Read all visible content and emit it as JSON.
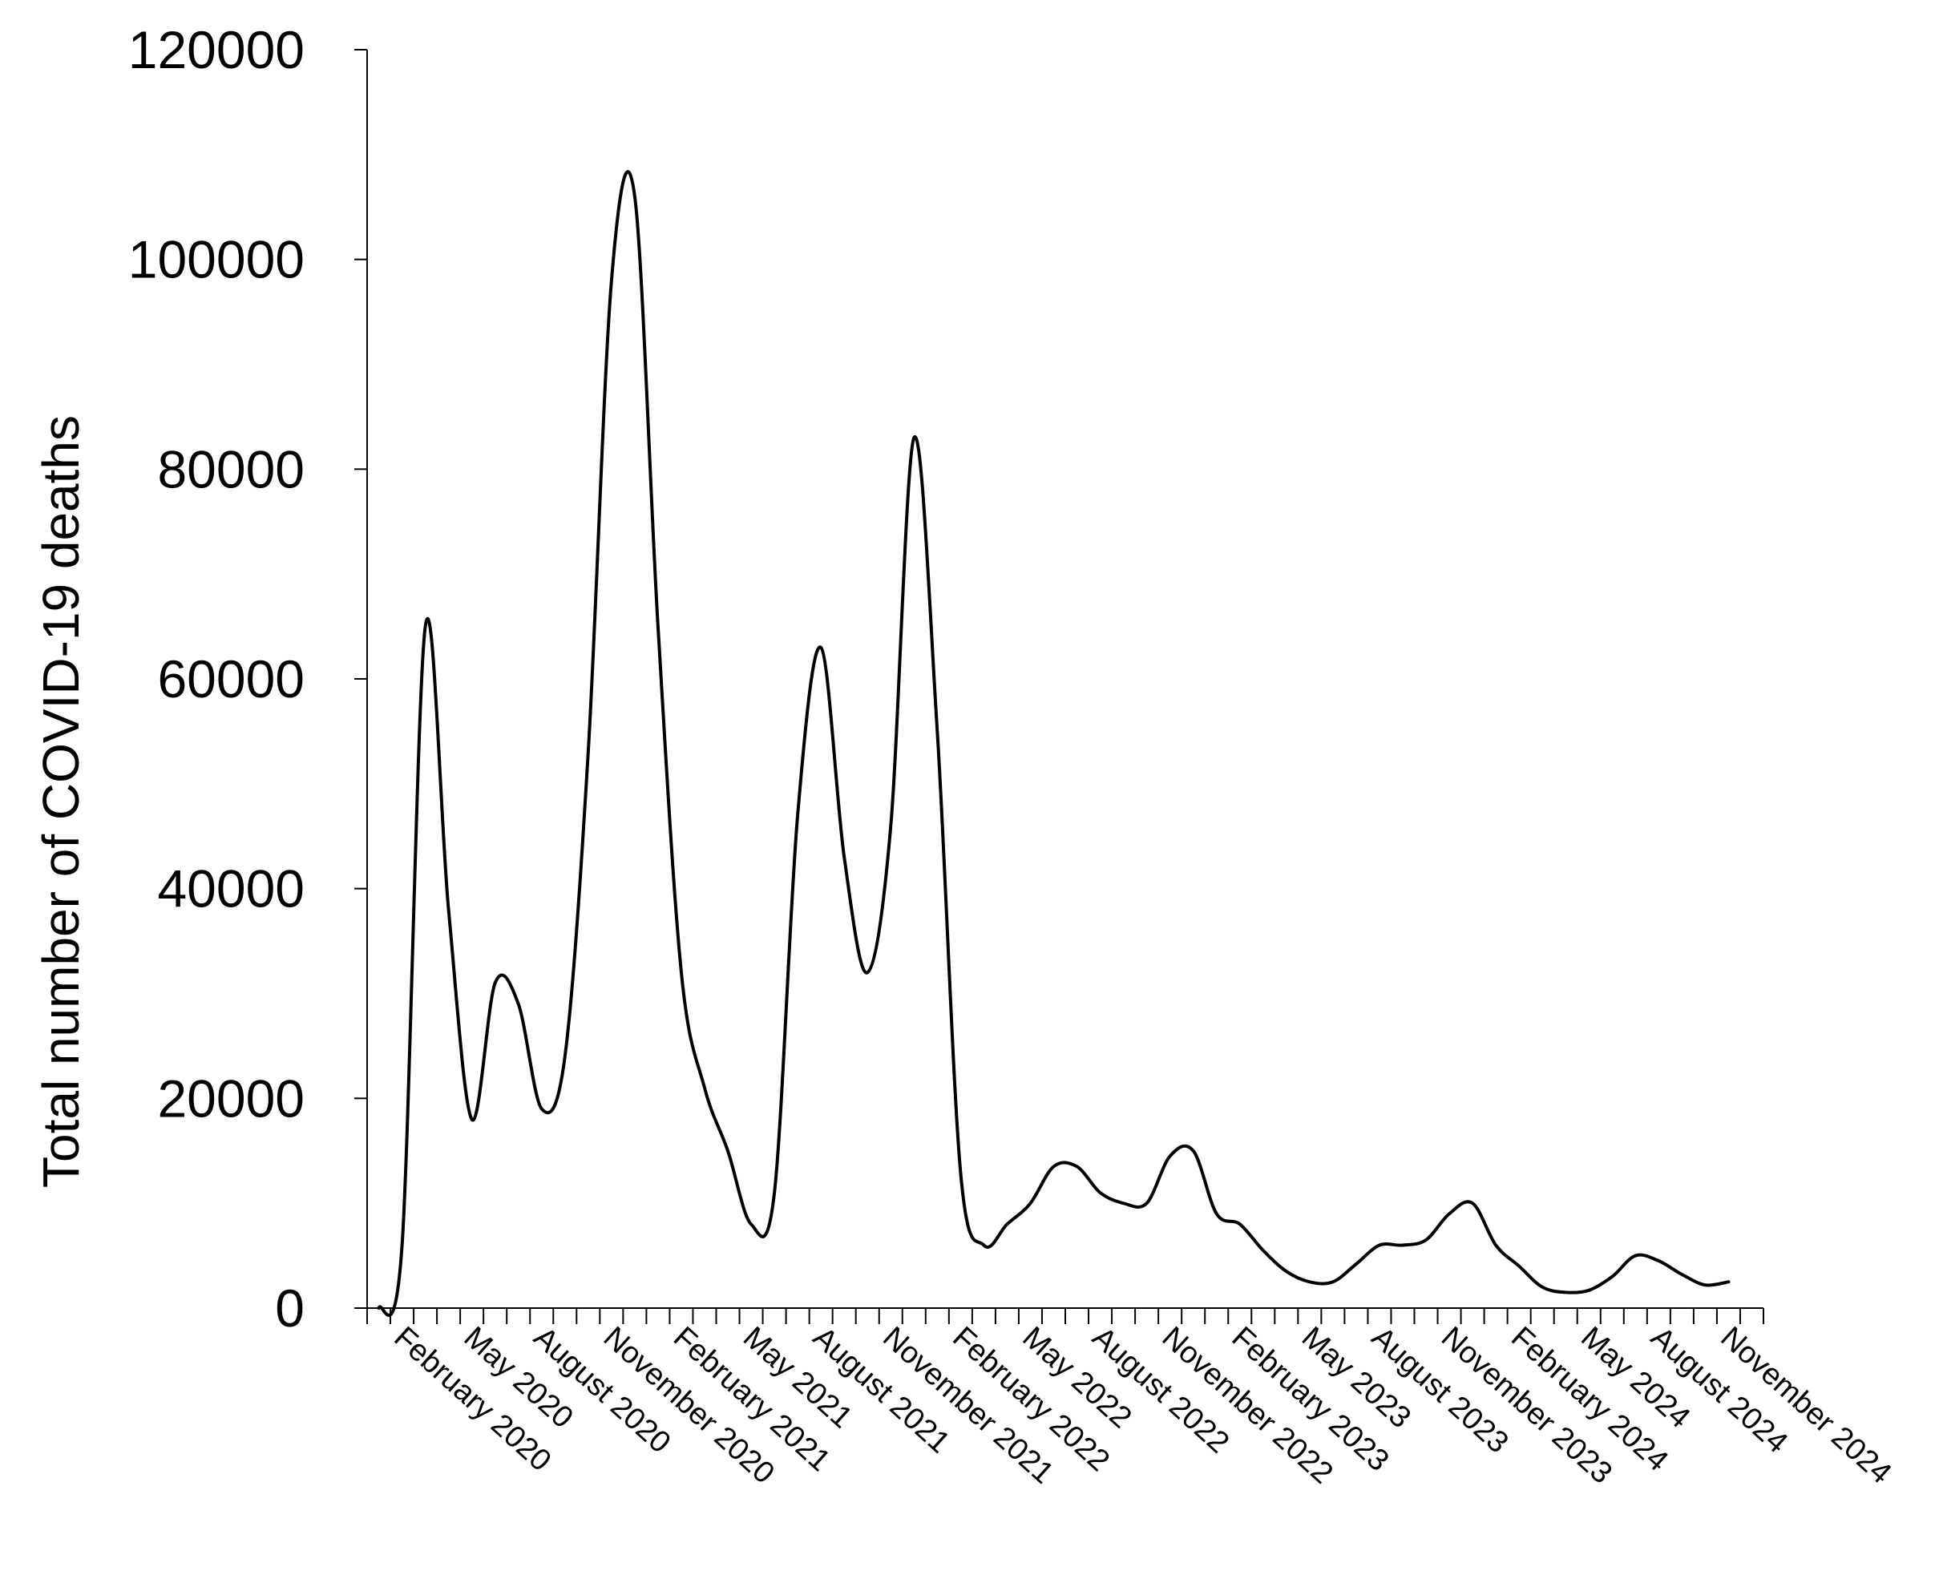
{
  "chart_data": {
    "type": "line",
    "title": "",
    "xlabel": "",
    "ylabel": "Total number of COVID-19 deaths",
    "ylim": [
      0,
      120000
    ],
    "yticks": [
      "0",
      "20000",
      "40000",
      "60000",
      "80000",
      "100000",
      "120000"
    ],
    "grid": false,
    "legend": "none",
    "line_color": "#000000",
    "x": [
      "January 2020",
      "February 2020",
      "March 2020",
      "April 2020",
      "May 2020",
      "June 2020",
      "July 2020",
      "August 2020",
      "September 2020",
      "October 2020",
      "November 2020",
      "December 2020",
      "January 2021",
      "February 2021",
      "March 2021",
      "April 2021",
      "May 2021",
      "June 2021",
      "July 2021",
      "August 2021",
      "September 2021",
      "October 2021",
      "November 2021",
      "December 2021",
      "January 2022",
      "February 2022",
      "March 2022",
      "April 2022",
      "May 2022",
      "June 2022",
      "July 2022",
      "August 2022",
      "September 2022",
      "October 2022",
      "November 2022",
      "December 2022",
      "January 2023",
      "February 2023",
      "March 2023",
      "April 2023",
      "May 2023",
      "June 2023",
      "July 2023",
      "August 2023",
      "September 2023",
      "October 2023",
      "November 2023",
      "December 2023",
      "January 2024",
      "February 2024",
      "March 2024",
      "April 2024",
      "May 2024",
      "June 2024",
      "July 2024",
      "August 2024",
      "September 2024",
      "October 2024",
      "November 2024",
      "December 2024"
    ],
    "series": [
      {
        "values": [
          0,
          6000,
          65000,
          38000,
          18000,
          31000,
          29000,
          19000,
          24000,
          53000,
          98000,
          106000,
          65000,
          32000,
          21000,
          15000,
          8000,
          11000,
          47000,
          63000,
          43000,
          32000,
          46000,
          83000,
          55000,
          13000,
          6000,
          8000,
          10000,
          13500,
          13500,
          11000,
          10000,
          10000,
          14500,
          15000,
          9000,
          8000,
          5500,
          3500,
          2500,
          2500,
          4200,
          6000,
          6000,
          6500,
          9000,
          10000,
          6000,
          4000,
          2000,
          1500,
          1700,
          3000,
          5000,
          4500,
          3200,
          2200,
          2500,
          null
        ]
      }
    ],
    "xtick_labels": [
      "February 2020",
      "May 2020",
      "August 2020",
      "November 2020",
      "February 2021",
      "May 2021",
      "August 2021",
      "November 2021",
      "February 2022",
      "May 2022",
      "August 2022",
      "November 2022",
      "February 2023",
      "May 2023",
      "August 2023",
      "November 2023",
      "February 2024",
      "May 2024",
      "August 2024",
      "November 2024"
    ],
    "xtick_label_positions": [
      1,
      4,
      7,
      10,
      13,
      16,
      19,
      22,
      25,
      28,
      31,
      34,
      37,
      40,
      43,
      46,
      49,
      52,
      55,
      58
    ]
  }
}
